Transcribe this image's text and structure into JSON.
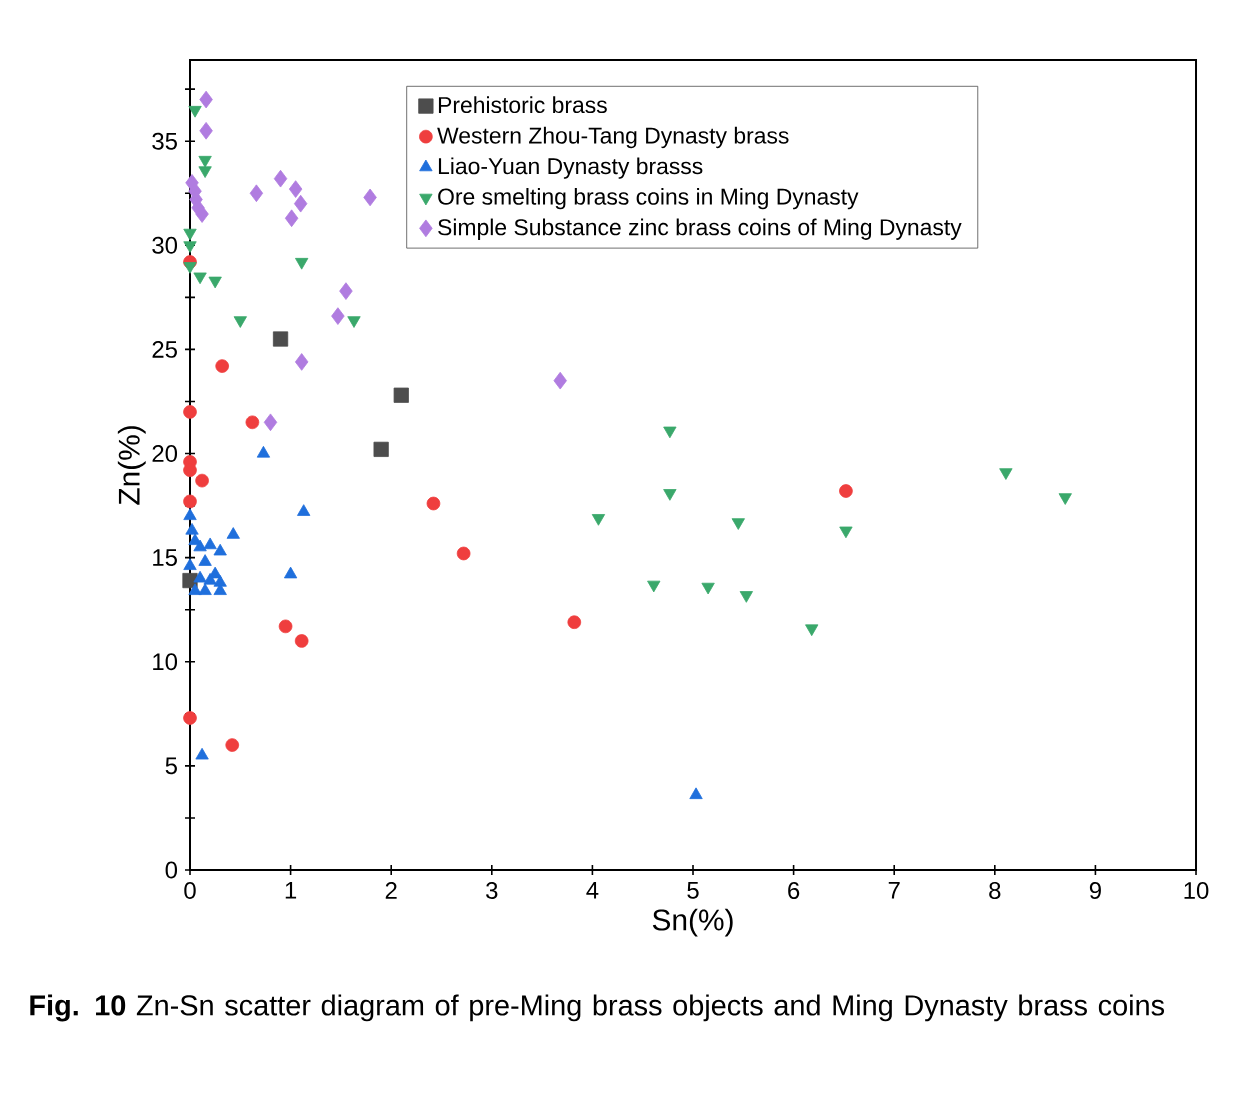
{
  "chart_data": {
    "type": "scatter",
    "xlabel": "Sn(%)",
    "ylabel": "Zn(%)",
    "xlim": [
      0,
      10
    ],
    "ylim": [
      0,
      38.9
    ],
    "xticks": [
      0,
      1,
      2,
      3,
      4,
      5,
      6,
      7,
      8,
      9,
      10
    ],
    "yticks": [
      0,
      {
        "value": 2.5,
        "label": null
      },
      5,
      {
        "value": 7.5,
        "label": null
      },
      10,
      {
        "value": 12.5,
        "label": null
      },
      15,
      {
        "value": 17.5,
        "label": null
      },
      20,
      {
        "value": 22.5,
        "label": null
      },
      25,
      {
        "value": 27.5,
        "label": null
      },
      30,
      {
        "value": 32.5,
        "label": null
      },
      35,
      {
        "value": 37.5,
        "label": null
      }
    ],
    "grid": false,
    "legend": "top right",
    "series": [
      {
        "name": "Prehistoric brass",
        "color": "#4d4d4d",
        "marker": "square",
        "x": [
          0.9,
          2.1,
          1.9,
          0.0
        ],
        "values": [
          25.5,
          22.8,
          20.2,
          13.9
        ]
      },
      {
        "name": "Western Zhou-Tang Dynasty brass",
        "color": "#ef3e3e",
        "marker": "circle",
        "x": [
          0.0,
          0.32,
          0.0,
          0.62,
          0.0,
          0.0,
          0.12,
          0.0,
          0.95,
          1.11,
          0.0,
          0.42,
          2.42,
          2.72,
          3.82,
          6.52
        ],
        "values": [
          29.2,
          24.2,
          22.0,
          21.5,
          19.6,
          19.2,
          18.7,
          17.7,
          11.7,
          11.0,
          7.3,
          6.0,
          17.6,
          15.2,
          11.9,
          18.2
        ]
      },
      {
        "name": "Liao-Yuan Dynasty brasss",
        "color": "#1f6fdc",
        "marker": "triangle",
        "x": [
          0.73,
          1.13,
          1.0,
          0.43,
          0.12,
          0.0,
          0.02,
          0.05,
          0.1,
          0.2,
          0.3,
          0.0,
          0.15,
          0.25,
          0.3,
          0.05,
          0.15,
          0.3,
          0.1,
          0.2,
          5.03
        ],
        "values": [
          20.0,
          17.2,
          14.2,
          16.1,
          5.5,
          17.0,
          16.3,
          15.8,
          15.5,
          15.6,
          15.3,
          14.6,
          14.8,
          14.2,
          13.8,
          13.4,
          13.4,
          13.4,
          14.0,
          13.9,
          3.6
        ]
      },
      {
        "name": "Ore smelting  brass coins in Ming Dynasty",
        "color": "#3aa86b",
        "marker": "triangle-down",
        "x": [
          0.05,
          0.15,
          0.15,
          0.0,
          0.0,
          0.0,
          0.1,
          0.25,
          1.11,
          0.5,
          1.63,
          4.77,
          4.77,
          4.06,
          5.45,
          6.52,
          4.61,
          5.15,
          5.53,
          6.18,
          8.11,
          8.7
        ],
        "values": [
          36.5,
          34.1,
          33.6,
          30.6,
          30.0,
          29.0,
          28.5,
          28.3,
          29.2,
          26.4,
          26.4,
          21.1,
          18.1,
          16.9,
          16.7,
          16.3,
          13.7,
          13.6,
          13.2,
          11.6,
          19.1,
          17.9
        ]
      },
      {
        "name": "Simple Substance zinc brass coins of Ming Dynasty",
        "color": "#b07ce0",
        "marker": "diamond",
        "x": [
          0.16,
          0.16,
          0.02,
          0.05,
          0.06,
          0.08,
          0.12,
          0.66,
          0.9,
          1.05,
          1.1,
          1.01,
          1.79,
          1.55,
          1.47,
          1.11,
          0.8,
          3.68
        ],
        "values": [
          37.0,
          35.5,
          33.0,
          32.6,
          32.2,
          31.8,
          31.5,
          32.5,
          33.2,
          32.7,
          32.0,
          31.3,
          32.3,
          27.8,
          26.6,
          24.4,
          21.5,
          23.5
        ]
      }
    ],
    "annotations": [
      "**Fig. 10** Zn-Sn scatter diagram of pre-Ming brass objects and Ming Dynasty brass coins"
    ]
  }
}
